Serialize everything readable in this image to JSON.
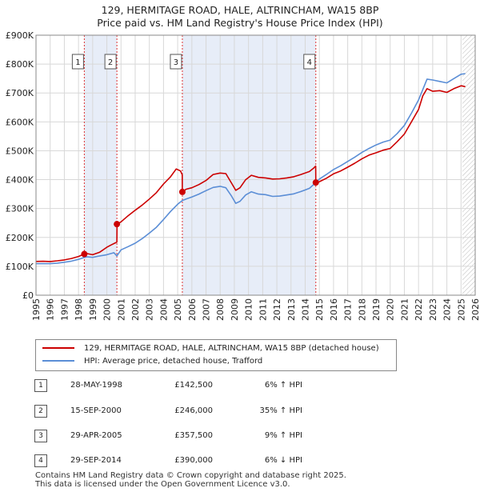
{
  "title_line1": "129, HERMITAGE ROAD, HALE, ALTRINCHAM, WA15 8BP",
  "title_line2": "Price paid vs. HM Land Registry's House Price Index (HPI)",
  "chart_data": {
    "type": "line",
    "xlim": [
      1995,
      2026
    ],
    "ylim": [
      0,
      900000
    ],
    "yticks": [
      0,
      100000,
      200000,
      300000,
      400000,
      500000,
      600000,
      700000,
      800000,
      900000
    ],
    "ytick_labels": [
      "£0",
      "£100K",
      "£200K",
      "£300K",
      "£400K",
      "£500K",
      "£600K",
      "£700K",
      "£800K",
      "£900K"
    ],
    "xticks": [
      1995,
      1996,
      1997,
      1998,
      1999,
      2000,
      2001,
      2002,
      2003,
      2004,
      2005,
      2006,
      2007,
      2008,
      2009,
      2010,
      2011,
      2012,
      2013,
      2014,
      2015,
      2016,
      2017,
      2018,
      2019,
      2020,
      2021,
      2022,
      2023,
      2024,
      2025,
      2026
    ],
    "grid": true,
    "forecast_from": 2025.1,
    "shaded_periods": [
      [
        1998.41,
        2000.71
      ],
      [
        2005.33,
        2014.75
      ]
    ],
    "series": [
      {
        "name": "129, HERMITAGE ROAD, HALE, ALTRINCHAM, WA15 8BP (detached house)",
        "color": "#cc0000",
        "points": [
          [
            1995.0,
            117000
          ],
          [
            1995.5,
            117500
          ],
          [
            1996.0,
            116500
          ],
          [
            1996.5,
            119000
          ],
          [
            1997.0,
            122000
          ],
          [
            1997.5,
            127000
          ],
          [
            1998.0,
            134000
          ],
          [
            1998.41,
            142500
          ],
          [
            1998.6,
            144000
          ],
          [
            1999.0,
            140000
          ],
          [
            1999.5,
            149000
          ],
          [
            2000.0,
            166000
          ],
          [
            2000.3,
            174000
          ],
          [
            2000.71,
            184000
          ],
          [
            2000.72,
            246000
          ],
          [
            2001.0,
            254000
          ],
          [
            2001.5,
            275000
          ],
          [
            2002.0,
            294000
          ],
          [
            2002.5,
            312000
          ],
          [
            2003.0,
            333000
          ],
          [
            2003.5,
            355000
          ],
          [
            2004.0,
            385000
          ],
          [
            2004.5,
            410000
          ],
          [
            2004.9,
            437000
          ],
          [
            2005.2,
            430000
          ],
          [
            2005.32,
            417000
          ],
          [
            2005.33,
            357500
          ],
          [
            2005.6,
            367000
          ],
          [
            2006.0,
            372000
          ],
          [
            2006.5,
            383000
          ],
          [
            2007.0,
            397000
          ],
          [
            2007.5,
            418000
          ],
          [
            2008.0,
            423000
          ],
          [
            2008.4,
            421000
          ],
          [
            2008.8,
            388000
          ],
          [
            2009.1,
            363000
          ],
          [
            2009.4,
            372000
          ],
          [
            2009.8,
            400000
          ],
          [
            2010.2,
            415000
          ],
          [
            2010.7,
            408000
          ],
          [
            2011.2,
            406000
          ],
          [
            2011.7,
            402000
          ],
          [
            2012.2,
            403000
          ],
          [
            2012.7,
            406000
          ],
          [
            2013.2,
            410000
          ],
          [
            2013.7,
            418000
          ],
          [
            2014.3,
            428000
          ],
          [
            2014.6,
            440000
          ],
          [
            2014.74,
            447000
          ],
          [
            2014.75,
            390000
          ],
          [
            2015.0,
            393000
          ],
          [
            2015.5,
            405000
          ],
          [
            2016.0,
            420000
          ],
          [
            2016.5,
            430000
          ],
          [
            2017.0,
            443000
          ],
          [
            2017.5,
            457000
          ],
          [
            2018.0,
            472000
          ],
          [
            2018.5,
            485000
          ],
          [
            2019.0,
            493000
          ],
          [
            2019.5,
            502000
          ],
          [
            2020.0,
            508000
          ],
          [
            2020.5,
            532000
          ],
          [
            2021.0,
            558000
          ],
          [
            2021.5,
            600000
          ],
          [
            2022.0,
            643000
          ],
          [
            2022.3,
            690000
          ],
          [
            2022.6,
            715000
          ],
          [
            2023.0,
            706000
          ],
          [
            2023.5,
            708000
          ],
          [
            2024.0,
            702000
          ],
          [
            2024.5,
            715000
          ],
          [
            2025.0,
            725000
          ],
          [
            2025.3,
            722000
          ]
        ]
      },
      {
        "name": "HPI: Average price, detached house, Trafford",
        "color": "#5b8ed6",
        "points": [
          [
            1995.0,
            109000
          ],
          [
            1995.5,
            109500
          ],
          [
            1996.0,
            109000
          ],
          [
            1996.5,
            111000
          ],
          [
            1997.0,
            114000
          ],
          [
            1997.5,
            118000
          ],
          [
            1998.0,
            124000
          ],
          [
            1998.41,
            131000
          ],
          [
            1998.6,
            133000
          ],
          [
            1999.0,
            131000
          ],
          [
            1999.5,
            136000
          ],
          [
            2000.0,
            140000
          ],
          [
            2000.5,
            147000
          ],
          [
            2000.71,
            136000
          ],
          [
            2001.0,
            157000
          ],
          [
            2001.5,
            168000
          ],
          [
            2002.0,
            180000
          ],
          [
            2002.5,
            196000
          ],
          [
            2003.0,
            215000
          ],
          [
            2003.5,
            235000
          ],
          [
            2004.0,
            262000
          ],
          [
            2004.5,
            290000
          ],
          [
            2005.0,
            315000
          ],
          [
            2005.33,
            328000
          ],
          [
            2005.6,
            333000
          ],
          [
            2006.0,
            340000
          ],
          [
            2006.5,
            350000
          ],
          [
            2007.0,
            362000
          ],
          [
            2007.5,
            373000
          ],
          [
            2008.0,
            377000
          ],
          [
            2008.4,
            372000
          ],
          [
            2008.8,
            343000
          ],
          [
            2009.1,
            318000
          ],
          [
            2009.4,
            325000
          ],
          [
            2009.8,
            347000
          ],
          [
            2010.2,
            358000
          ],
          [
            2010.7,
            350000
          ],
          [
            2011.2,
            348000
          ],
          [
            2011.7,
            342000
          ],
          [
            2012.2,
            343000
          ],
          [
            2012.7,
            347000
          ],
          [
            2013.2,
            351000
          ],
          [
            2013.7,
            359000
          ],
          [
            2014.3,
            370000
          ],
          [
            2014.75,
            390000
          ],
          [
            2015.0,
            402000
          ],
          [
            2015.5,
            418000
          ],
          [
            2016.0,
            435000
          ],
          [
            2016.5,
            448000
          ],
          [
            2017.0,
            463000
          ],
          [
            2017.5,
            478000
          ],
          [
            2018.0,
            494000
          ],
          [
            2018.5,
            508000
          ],
          [
            2019.0,
            520000
          ],
          [
            2019.5,
            530000
          ],
          [
            2020.0,
            537000
          ],
          [
            2020.5,
            560000
          ],
          [
            2021.0,
            588000
          ],
          [
            2021.5,
            630000
          ],
          [
            2022.0,
            676000
          ],
          [
            2022.3,
            712000
          ],
          [
            2022.6,
            748000
          ],
          [
            2023.0,
            745000
          ],
          [
            2023.5,
            740000
          ],
          [
            2024.0,
            735000
          ],
          [
            2024.5,
            750000
          ],
          [
            2025.0,
            765000
          ],
          [
            2025.3,
            767000
          ]
        ]
      }
    ],
    "transactions": [
      {
        "label": "1",
        "x": 1998.41,
        "y": 142500
      },
      {
        "label": "2",
        "x": 2000.71,
        "y": 246000
      },
      {
        "label": "3",
        "x": 2005.33,
        "y": 357500
      },
      {
        "label": "4",
        "x": 2014.75,
        "y": 390000
      }
    ]
  },
  "legend": {
    "red_label": "129, HERMITAGE ROAD, HALE, ALTRINCHAM, WA15 8BP (detached house)",
    "blue_label": "HPI: Average price, detached house, Trafford"
  },
  "table": [
    {
      "num": "1",
      "date": "28-MAY-1998",
      "price": "£142,500",
      "hpi": "6% ↑ HPI"
    },
    {
      "num": "2",
      "date": "15-SEP-2000",
      "price": "£246,000",
      "hpi": "35% ↑ HPI"
    },
    {
      "num": "3",
      "date": "29-APR-2005",
      "price": "£357,500",
      "hpi": "9% ↑ HPI"
    },
    {
      "num": "4",
      "date": "29-SEP-2014",
      "price": "£390,000",
      "hpi": "6% ↓ HPI"
    }
  ],
  "footer_line1": "Contains HM Land Registry data © Crown copyright and database right 2025.",
  "footer_line2": "This data is licensed under the Open Government Licence v3.0."
}
